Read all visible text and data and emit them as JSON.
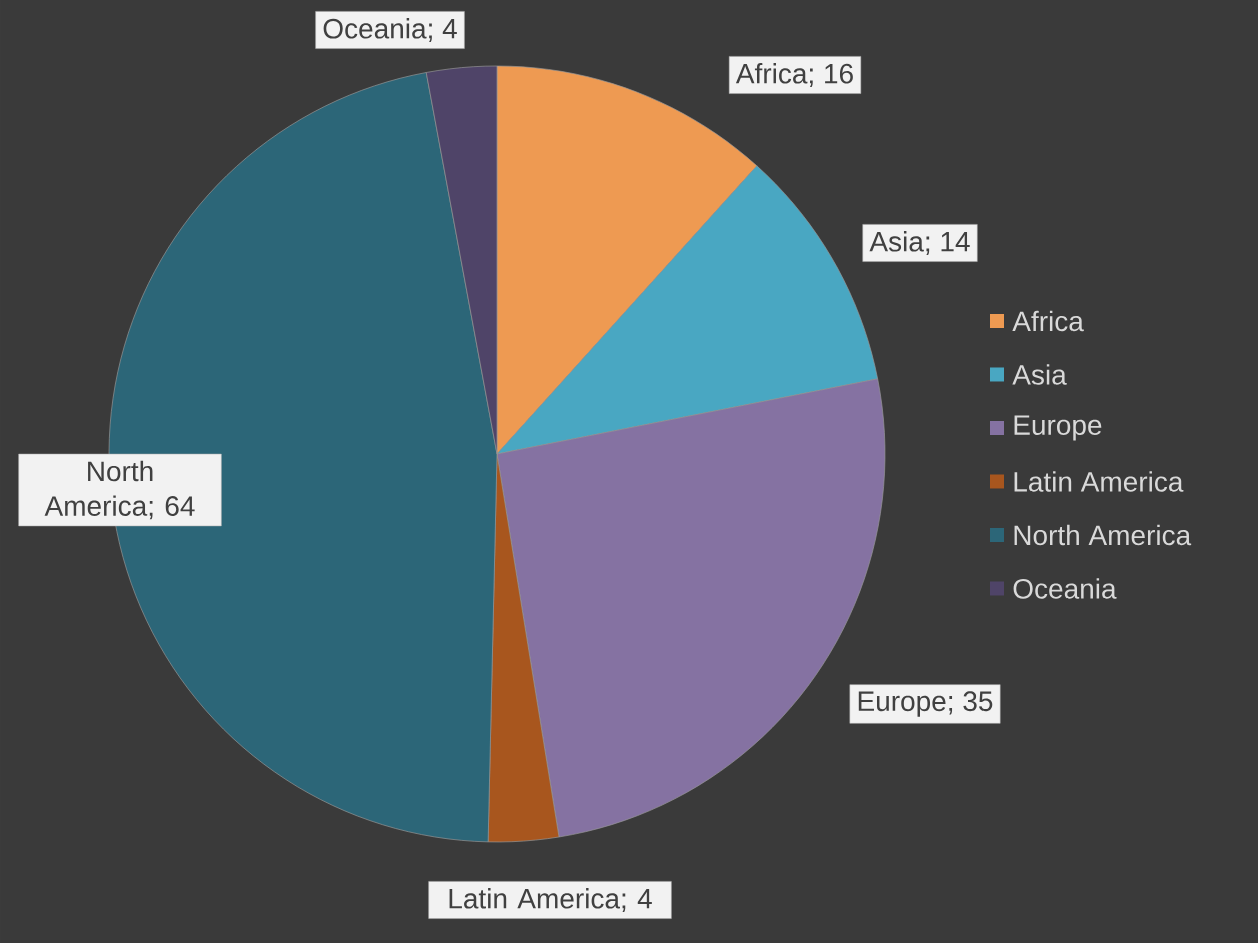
{
  "chart_data": {
    "type": "pie",
    "categories": [
      "Africa",
      "Asia",
      "Europe",
      "Latin America",
      "North America",
      "Oceania"
    ],
    "values": [
      16,
      14,
      35,
      4,
      64,
      4
    ],
    "colors": [
      "#ee9a52",
      "#49a7c2",
      "#8572a2",
      "#a8561e",
      "#2c6678",
      "#4f4468"
    ],
    "value_labels": [
      "Africa; 16",
      "Asia; 14",
      "Europe; 35",
      "Latin America; 4",
      "North America; 64",
      "Oceania; 4"
    ],
    "legend": "right"
  }
}
